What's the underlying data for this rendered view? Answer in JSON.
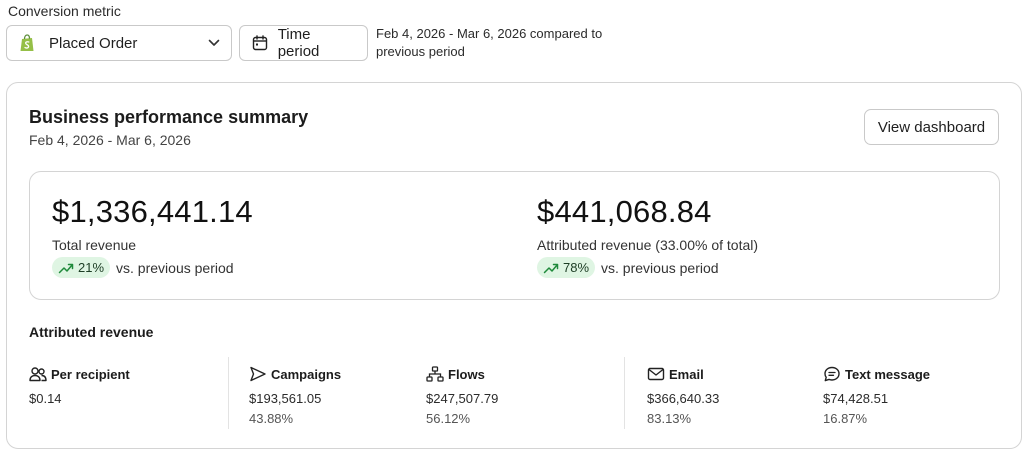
{
  "filters": {
    "label": "Conversion metric",
    "metric_value": "Placed Order",
    "time_button": "Time period",
    "compare_text": "Feb 4, 2026 - Mar 6, 2026 compared to previous period"
  },
  "card": {
    "title": "Business performance summary",
    "date_range": "Feb 4, 2026 - Mar 6, 2026",
    "view_button": "View dashboard"
  },
  "summary": {
    "total": {
      "value": "$1,336,441.14",
      "label": "Total revenue",
      "change": "21%",
      "vs": "vs. previous period"
    },
    "attributed": {
      "value": "$441,068.84",
      "label": "Attributed revenue (33.00% of total)",
      "change": "78%",
      "vs": "vs. previous period"
    }
  },
  "attributed_revenue": {
    "title": "Attributed revenue",
    "stats": [
      {
        "label": "Per recipient",
        "value": "$0.14",
        "icon": "people-icon"
      },
      {
        "label": "Campaigns",
        "value": "$193,561.05",
        "percent": "43.88%",
        "icon": "send-icon"
      },
      {
        "label": "Flows",
        "value": "$247,507.79",
        "percent": "56.12%",
        "icon": "flow-icon"
      },
      {
        "label": "Email",
        "value": "$366,640.33",
        "percent": "83.13%",
        "icon": "mail-icon"
      },
      {
        "label": "Text message",
        "value": "$74,428.51",
        "percent": "16.87%",
        "icon": "chat-icon"
      }
    ]
  },
  "colors": {
    "pill_bg": "#dff5e3",
    "pill_icon": "#1f8a3b",
    "shopify_green": "#95bf47",
    "border": "#d4d4d4"
  }
}
